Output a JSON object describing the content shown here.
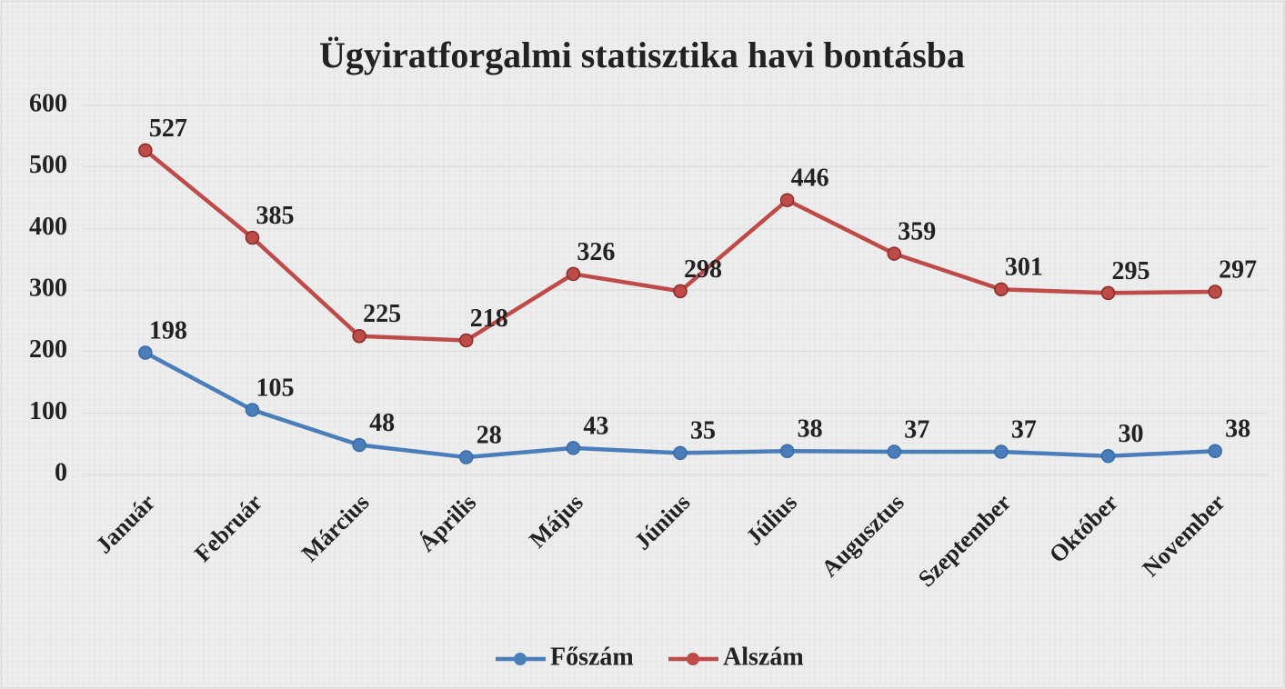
{
  "chart_data": {
    "type": "line",
    "title": "Ügyiratforgalmi statisztika havi bontásba",
    "categories": [
      "Január",
      "Február",
      "Március",
      "Április",
      "Május",
      "Június",
      "Július",
      "Augusztus",
      "Szeptember",
      "Október",
      "November"
    ],
    "series": [
      {
        "name": "Főszám",
        "color": "#4a7ebb",
        "values": [
          198,
          105,
          48,
          28,
          43,
          35,
          38,
          37,
          37,
          30,
          38
        ]
      },
      {
        "name": "Alszám",
        "color": "#be4b48",
        "values": [
          527,
          385,
          225,
          218,
          326,
          298,
          446,
          359,
          301,
          295,
          297
        ]
      }
    ],
    "ylim": [
      0,
      600
    ],
    "yticks": [
      0,
      100,
      200,
      300,
      400,
      500,
      600
    ],
    "grid": true,
    "legend": "bottom"
  }
}
